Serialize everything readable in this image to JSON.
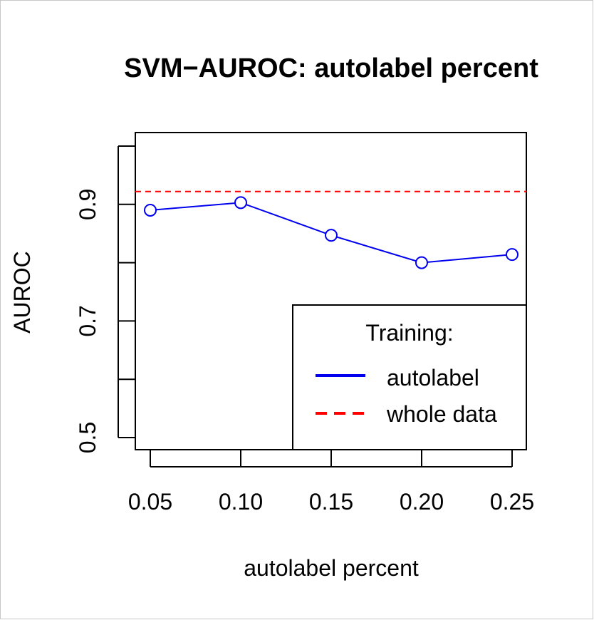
{
  "chart_data": {
    "type": "line",
    "title": "SVM−AUROC: autolabel percent",
    "xlabel": "autolabel percent",
    "ylabel": "AUROC",
    "x_ticks": [
      "0.05",
      "0.10",
      "0.15",
      "0.20",
      "0.25"
    ],
    "y_tick_values": [
      0.5,
      0.6,
      0.7,
      0.8,
      0.9,
      1.0
    ],
    "y_tick_labels": [
      {
        "value": 0.5,
        "label": "0.5"
      },
      {
        "value": 0.7,
        "label": "0.7"
      },
      {
        "value": 0.9,
        "label": "0.9"
      }
    ],
    "xlim": [
      0.05,
      0.25
    ],
    "ylim": [
      0.48,
      1.02
    ],
    "grid": false,
    "series": [
      {
        "name": "autolabel",
        "color": "#0000ee",
        "style": "solid-line-with-open-circles",
        "x": [
          0.05,
          0.1,
          0.15,
          0.2,
          0.25
        ],
        "y": [
          0.89,
          0.903,
          0.847,
          0.8,
          0.814
        ]
      }
    ],
    "reference_lines": [
      {
        "name": "whole data",
        "color": "#ff0000",
        "style": "dashed",
        "y": 0.922
      }
    ],
    "legend": {
      "title": "Training:",
      "placement": "bottom-right",
      "entries": [
        {
          "label": "autolabel",
          "color": "#0000ee",
          "style": "solid"
        },
        {
          "label": "whole data",
          "color": "#ff0000",
          "style": "dashed"
        }
      ]
    }
  }
}
